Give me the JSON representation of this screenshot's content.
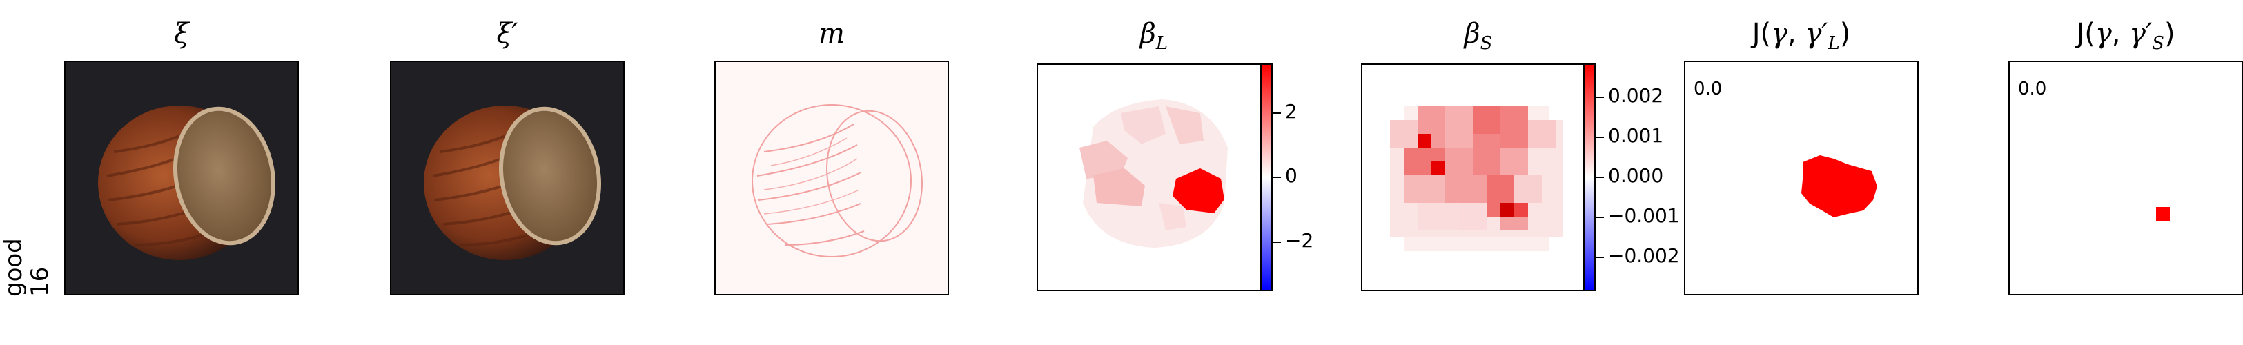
{
  "row_label": {
    "line1": "good",
    "line2": "16"
  },
  "panels": [
    {
      "key": "xi",
      "title": "ξ"
    },
    {
      "key": "xi_prime",
      "title": "ξ′"
    },
    {
      "key": "m",
      "title": "m"
    },
    {
      "key": "beta_L",
      "title": "β_L"
    },
    {
      "key": "beta_S",
      "title": "β_S"
    },
    {
      "key": "J_L",
      "title": "J(γ, γ′_L)"
    },
    {
      "key": "J_S",
      "title": "J(γ, γ′_S)"
    }
  ],
  "chart_data": [
    {
      "type": "heatmap",
      "panel": "ξ",
      "description_of_content": "photo"
    },
    {
      "type": "heatmap",
      "panel": "ξ′"
    },
    {
      "type": "heatmap",
      "panel": "m",
      "colormap": "bwr"
    },
    {
      "type": "heatmap",
      "panel": "β_L",
      "colormap": "bwr",
      "colorbar": {
        "ticks": [
          -2,
          0,
          2
        ],
        "tick_labels": [
          "−2",
          "0",
          "2"
        ],
        "range": [
          -3.3,
          3.3
        ]
      }
    },
    {
      "type": "heatmap",
      "panel": "β_S",
      "colormap": "bwr",
      "colorbar": {
        "ticks": [
          -0.002,
          -0.001,
          0.0,
          0.001,
          0.002
        ],
        "tick_labels": [
          "−0.002",
          "−0.001",
          "0.000",
          "0.001",
          "0.002"
        ],
        "range": [
          -0.0028,
          0.0028
        ]
      }
    },
    {
      "type": "heatmap",
      "panel": "J(γ, γ′_L)",
      "annotation": "0.0"
    },
    {
      "type": "heatmap",
      "panel": "J(γ, γ′_S)",
      "annotation": "0.0"
    }
  ],
  "colors": {
    "red": "#ff0000",
    "blue": "#0000ff",
    "dark_bg": "#1f1f24"
  }
}
